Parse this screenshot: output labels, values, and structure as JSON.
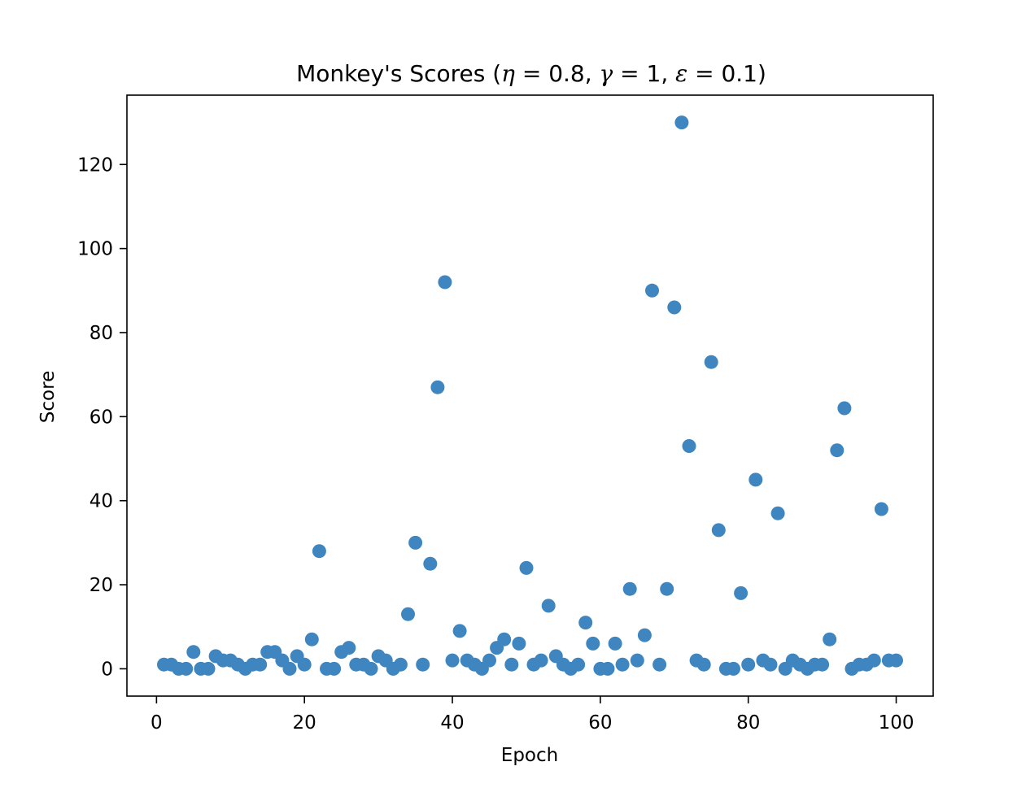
{
  "chart_data": {
    "type": "scatter",
    "title_parts": {
      "prefix": "Monkey's Scores (",
      "eta_symbol": "η",
      "eta_value": " = 0.8, ",
      "gamma_symbol": "γ",
      "gamma_value": " = 1, ",
      "epsilon_symbol": "ε",
      "epsilon_value": " = 0.1)"
    },
    "xlabel": "Epoch",
    "ylabel": "Score",
    "xlim": [
      -4,
      105
    ],
    "ylim": [
      -6.5,
      136.5
    ],
    "x_ticks": [
      0,
      20,
      40,
      60,
      80,
      100
    ],
    "y_ticks": [
      0,
      20,
      40,
      60,
      80,
      100,
      120
    ],
    "grid": false,
    "marker_color": "#3f86c0",
    "series": [
      {
        "x": [
          1,
          2,
          3,
          4,
          5,
          6,
          7,
          8,
          9,
          10,
          11,
          12,
          13,
          14,
          15,
          16,
          17,
          18,
          19,
          20,
          21,
          22,
          23,
          24,
          25,
          26,
          27,
          28,
          29,
          30,
          31,
          32,
          33,
          34,
          35,
          36,
          37,
          38,
          39,
          40,
          41,
          42,
          43,
          44,
          45,
          46,
          47,
          48,
          49,
          50,
          51,
          52,
          53,
          54,
          55,
          56,
          57,
          58,
          59,
          60,
          61,
          62,
          63,
          64,
          65,
          66,
          67,
          68,
          69,
          70,
          71,
          72,
          73,
          74,
          75,
          76,
          77,
          78,
          79,
          80,
          81,
          82,
          83,
          84,
          85,
          86,
          87,
          88,
          89,
          90,
          91,
          92,
          93,
          94,
          95,
          96,
          97,
          98,
          99,
          100
        ],
        "y": [
          1,
          1,
          0,
          0,
          4,
          0,
          0,
          3,
          2,
          2,
          1,
          0,
          1,
          1,
          4,
          4,
          2,
          0,
          3,
          1,
          7,
          28,
          0,
          0,
          4,
          5,
          1,
          1,
          0,
          3,
          2,
          0,
          1,
          13,
          30,
          1,
          25,
          67,
          92,
          2,
          9,
          2,
          1,
          0,
          2,
          5,
          7,
          1,
          6,
          24,
          1,
          2,
          15,
          3,
          1,
          0,
          1,
          11,
          6,
          0,
          0,
          6,
          1,
          19,
          2,
          8,
          90,
          1,
          19,
          86,
          130,
          53,
          2,
          1,
          73,
          33,
          0,
          0,
          18,
          1,
          45,
          2,
          1,
          37,
          0,
          2,
          1,
          0,
          1,
          1,
          7,
          52,
          62,
          0,
          1,
          1,
          2,
          38,
          2,
          2
        ]
      }
    ]
  }
}
